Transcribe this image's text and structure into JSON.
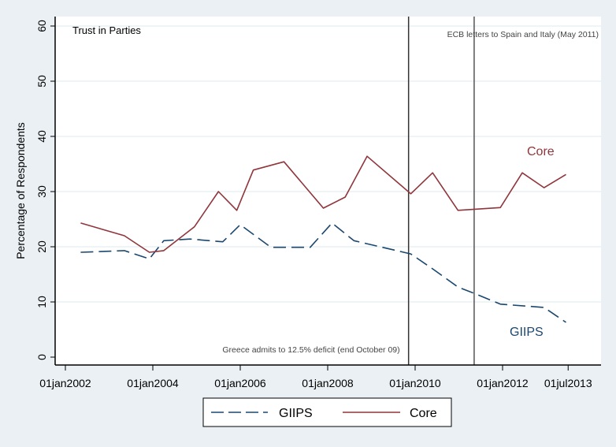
{
  "chart_data": {
    "type": "line",
    "title": "Trust in Parties",
    "xlabel": "",
    "ylabel": "Percentage of Respondents",
    "ylim": [
      0,
      60
    ],
    "yticks": [
      0,
      10,
      20,
      30,
      40,
      50,
      60
    ],
    "xlim_years": [
      2001.75,
      2013.85
    ],
    "xticks": [
      {
        "label": "01jan2002",
        "year": 2002.0
      },
      {
        "label": "01jan2004",
        "year": 2004.0
      },
      {
        "label": "01jan2006",
        "year": 2006.0
      },
      {
        "label": "01jan2008",
        "year": 2008.0
      },
      {
        "label": "01jan2010",
        "year": 2010.0
      },
      {
        "label": "01jan2012",
        "year": 2012.0
      },
      {
        "label": "01jul2013",
        "year": 2013.5
      }
    ],
    "grid": true,
    "legend_position": "bottom",
    "series": [
      {
        "name": "GIIPS",
        "color": "#1a476f",
        "style": "dashed",
        "label_text": "GIIPS",
        "x": [
          2002.35,
          2003.35,
          2003.92,
          2004.25,
          2004.85,
          2005.6,
          2006.0,
          2006.7,
          2007.6,
          2008.1,
          2008.6,
          2009.9,
          2010.4,
          2010.98,
          2011.4,
          2011.95,
          2012.95,
          2013.45
        ],
        "values": [
          19.0,
          19.3,
          17.8,
          21.1,
          21.4,
          20.9,
          24.0,
          19.9,
          19.9,
          24.3,
          21.1,
          18.7,
          16.0,
          12.7,
          11.4,
          9.6,
          9.0,
          6.3
        ]
      },
      {
        "name": "Core",
        "color": "#90353b",
        "style": "solid",
        "label_text": "Core",
        "x": [
          2002.35,
          2003.35,
          2003.92,
          2004.25,
          2004.95,
          2005.5,
          2005.92,
          2006.3,
          2007.0,
          2007.9,
          2008.4,
          2008.9,
          2009.9,
          2010.4,
          2010.98,
          2011.95,
          2012.45,
          2012.95,
          2013.45
        ],
        "values": [
          24.3,
          22.0,
          19.0,
          19.3,
          23.6,
          30.0,
          26.6,
          33.9,
          35.4,
          27.0,
          29.0,
          36.4,
          29.6,
          33.4,
          26.6,
          27.1,
          33.4,
          30.7,
          33.1
        ]
      }
    ],
    "annotations": [
      {
        "text": "ECB letters to Spain and Italy (May 2011)",
        "type": "vline-label"
      },
      {
        "text": "Greece admits to 12.5% deficit (end October 09)",
        "type": "vline-label"
      }
    ],
    "vlines": [
      {
        "year": 2009.85,
        "label": "Greece admits to 12.5% deficit (end October 09)"
      },
      {
        "year": 2011.35,
        "label": "ECB letters to Spain and Italy (May 2011)"
      }
    ]
  },
  "legend": {
    "items": [
      {
        "label": "GIIPS"
      },
      {
        "label": "Core"
      }
    ]
  }
}
